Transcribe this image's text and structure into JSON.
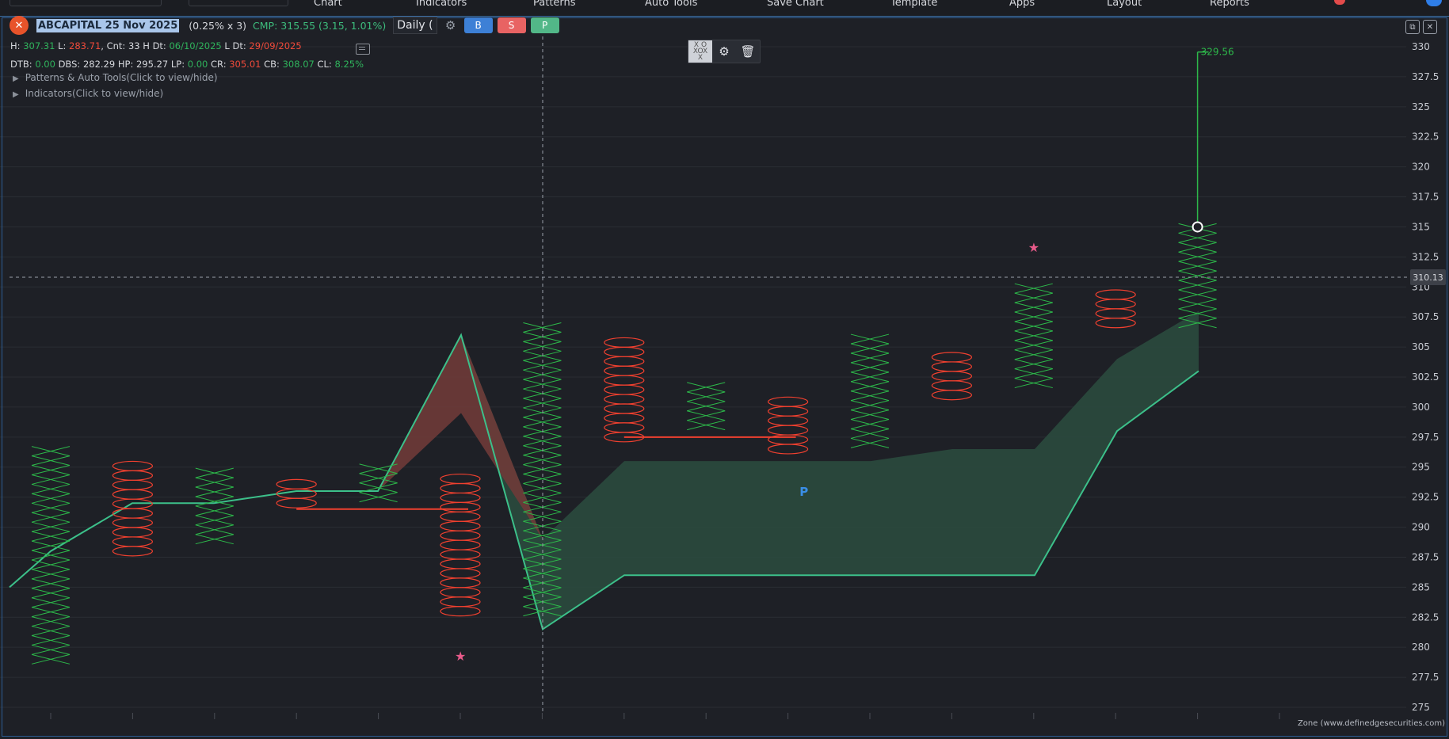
{
  "nav": {
    "items": [
      "Chart",
      "Indicators",
      "Patterns",
      "Auto Tools",
      "Save Chart",
      "Template",
      "Apps",
      "Layout",
      "Reports"
    ]
  },
  "header": {
    "logo": "✕",
    "symbol": "ABCAPITAL 25 Nov 2025",
    "box": "(0.25% x 3)",
    "cmp": "CMP: 315.55 (3.15, 1.01%)",
    "period": "Daily (",
    "buy": "B",
    "sell": "S",
    "p": "P"
  },
  "stats1": {
    "h_label": "H:",
    "h": "307.31",
    "l_label": "L:",
    "l": "283.71",
    "cnt_label": "Cnt:",
    "cnt": "33",
    "hdt_label": "H Dt:",
    "hdt": "06/10/2025",
    "ldt_label": "L Dt:",
    "ldt": "29/09/2025"
  },
  "stats2": {
    "dtb_label": "DTB:",
    "dtb": "0.00",
    "dbs_label": "DBS:",
    "dbs": "282.29",
    "hp_label": "HP:",
    "hp": "295.27",
    "lp_label": "LP:",
    "lp": "0.00",
    "cr_label": "CR:",
    "cr": "305.01",
    "cb_label": "CB:",
    "cb": "308.07",
    "cl_label": "CL:",
    "cl": "8.25%"
  },
  "toggles": {
    "patterns": "Patterns & Auto Tools(Click to view/hide)",
    "indicators": "Indicators(Click to view/hide)"
  },
  "crosshair_price": "310.13",
  "footer": "Zone (www.definedgesecurities.com)",
  "colors": {
    "x": "#2db84a",
    "o": "#f0402f",
    "band": "#2a4a3e",
    "band_line": "#3cc08a",
    "red_fill": "#6e3a38",
    "bg": "#1e2026"
  },
  "icons": [
    "logo-icon",
    "gear-icon",
    "chat-icon",
    "pnf-tool-icon",
    "trash-icon",
    "star-icon"
  ],
  "chart_data": {
    "type": "point-and-figure",
    "box_size": 0.7875,
    "ylim": [
      275,
      330
    ],
    "yticks": [
      275,
      277.5,
      280,
      282.5,
      285,
      287.5,
      290,
      292.5,
      295,
      297.5,
      300,
      302.5,
      305,
      307.5,
      310,
      312.5,
      315,
      317.5,
      320,
      322.5,
      325,
      327.5,
      330
    ],
    "columns": [
      {
        "type": "X",
        "low": 279,
        "high": 296
      },
      {
        "type": "O",
        "low": 288,
        "high": 295
      },
      {
        "type": "X",
        "low": 289,
        "high": 294.5
      },
      {
        "type": "O",
        "low": 292,
        "high": 293.5
      },
      {
        "type": "X",
        "low": 292.5,
        "high": 294.5
      },
      {
        "type": "O",
        "low": 283,
        "high": 294
      },
      {
        "type": "X",
        "low": 283,
        "high": 306.5
      },
      {
        "type": "O",
        "low": 297.5,
        "high": 305.5
      },
      {
        "type": "X",
        "low": 298.5,
        "high": 301.5
      },
      {
        "type": "O",
        "low": 296.5,
        "high": 300.5
      },
      {
        "type": "X",
        "low": 297,
        "high": 305.5
      },
      {
        "type": "O",
        "low": 301,
        "high": 304.5
      },
      {
        "type": "X",
        "low": 302,
        "high": 310
      },
      {
        "type": "O",
        "low": 307,
        "high": 309.5
      },
      {
        "type": "X",
        "low": 307,
        "high": 315
      }
    ],
    "band_upper": [
      285,
      288,
      292,
      292,
      293,
      293,
      306,
      289,
      295.5,
      295.5,
      295.5,
      295.5,
      296.5,
      296.5,
      304,
      308
    ],
    "band_lower": [
      285,
      288,
      292,
      292,
      293,
      293,
      306,
      281.5,
      286,
      286,
      286,
      286,
      286,
      286,
      298,
      303
    ],
    "support_lines": [
      {
        "from": 3,
        "to": 5,
        "y": 291.5
      },
      {
        "from": 7,
        "to": 9,
        "y": 297.5
      }
    ],
    "target": {
      "column": 14,
      "from": 315,
      "to": 329.56,
      "label": "329.56"
    },
    "stars": [
      {
        "column": 5,
        "y": 279.3
      },
      {
        "column": 12,
        "y": 313.3
      }
    ],
    "pattern_label": {
      "column": 9.2,
      "y": 293,
      "text": "P"
    }
  }
}
